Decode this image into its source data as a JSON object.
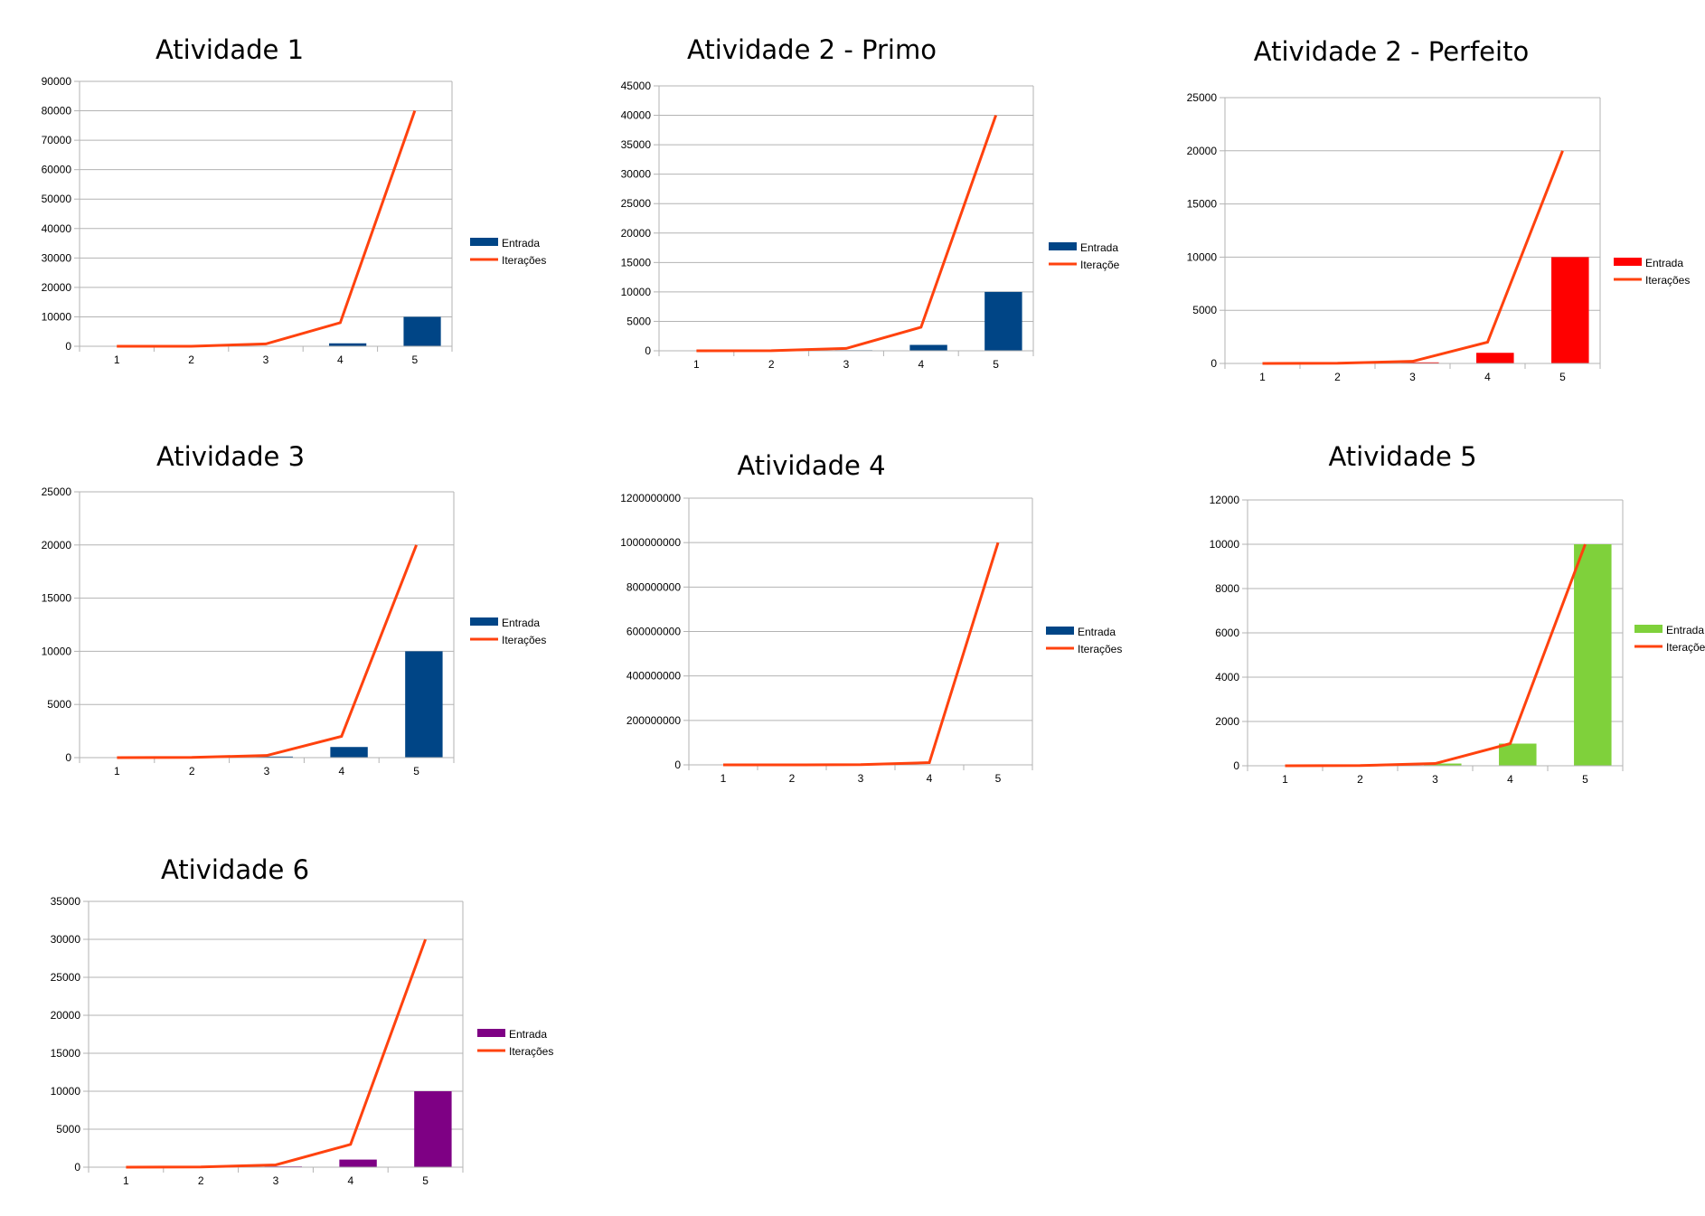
{
  "colors": {
    "line": "#ff420e",
    "grid": "#b3b3b3",
    "axis": "#b3b3b3"
  },
  "chart_data": [
    {
      "type": "bar",
      "title": "Atividade 1",
      "categories": [
        "1",
        "2",
        "3",
        "4",
        "5"
      ],
      "ylim": [
        0,
        90000
      ],
      "yticks": [
        "0",
        "10000",
        "20000",
        "30000",
        "40000",
        "50000",
        "60000",
        "70000",
        "80000",
        "90000"
      ],
      "ystep": 10000,
      "grid": true,
      "legend_placement": "right",
      "bar_color": "#004586",
      "series": [
        {
          "name": "Entrada",
          "kind": "bar",
          "values": [
            1,
            10,
            100,
            1000,
            10000
          ]
        },
        {
          "name": "Iterações",
          "kind": "line",
          "values": [
            1,
            8,
            800,
            8000,
            80000
          ]
        }
      ]
    },
    {
      "type": "bar",
      "title": "Atividade 2 - Primo",
      "categories": [
        "1",
        "2",
        "3",
        "4",
        "5"
      ],
      "ylim": [
        0,
        45000
      ],
      "yticks": [
        "0",
        "5000",
        "10000",
        "15000",
        "20000",
        "25000",
        "30000",
        "35000",
        "40000",
        "45000"
      ],
      "ystep": 5000,
      "grid": true,
      "legend_placement": "right",
      "bar_color": "#004586",
      "series": [
        {
          "name": "Entrada",
          "kind": "bar",
          "values": [
            1,
            10,
            100,
            1000,
            10000
          ]
        },
        {
          "name": "Iteraçõe",
          "kind": "line",
          "values": [
            1,
            20,
            400,
            4000,
            40000
          ]
        }
      ]
    },
    {
      "type": "bar",
      "title": "Atividade 2 - Perfeito",
      "categories": [
        "1",
        "2",
        "3",
        "4",
        "5"
      ],
      "ylim": [
        0,
        25000
      ],
      "yticks": [
        "0",
        "5000",
        "10000",
        "15000",
        "20000",
        "25000"
      ],
      "ystep": 5000,
      "grid": true,
      "legend_placement": "right",
      "bar_color": "#ff0000",
      "series": [
        {
          "name": "Entrada",
          "kind": "bar",
          "values": [
            1,
            10,
            100,
            1000,
            10000
          ]
        },
        {
          "name": "Iterações",
          "kind": "line",
          "values": [
            1,
            20,
            200,
            2000,
            20000
          ]
        }
      ]
    },
    {
      "type": "bar",
      "title": "Atividade 3",
      "categories": [
        "1",
        "2",
        "3",
        "4",
        "5"
      ],
      "ylim": [
        0,
        25000
      ],
      "yticks": [
        "0",
        "5000",
        "10000",
        "15000",
        "20000",
        "25000"
      ],
      "ystep": 5000,
      "grid": true,
      "legend_placement": "right",
      "bar_color": "#004586",
      "series": [
        {
          "name": "Entrada",
          "kind": "bar",
          "values": [
            1,
            10,
            100,
            1000,
            10000
          ]
        },
        {
          "name": "Iterações",
          "kind": "line",
          "values": [
            1,
            20,
            200,
            2000,
            20000
          ]
        }
      ]
    },
    {
      "type": "bar",
      "title": "Atividade 4",
      "categories": [
        "1",
        "2",
        "3",
        "4",
        "5"
      ],
      "ylim": [
        0,
        1200000000
      ],
      "yticks": [
        "0",
        "200000000",
        "400000000",
        "600000000",
        "800000000",
        "1000000000",
        "1200000000"
      ],
      "ystep": 200000000,
      "grid": true,
      "legend_placement": "right",
      "bar_color": "#004586",
      "series": [
        {
          "name": "Entrada",
          "kind": "bar",
          "values": [
            1,
            10,
            100,
            1000,
            10000
          ]
        },
        {
          "name": "Iterações",
          "kind": "line",
          "values": [
            1,
            1000,
            1000000,
            10000000,
            1000000000
          ]
        }
      ]
    },
    {
      "type": "bar",
      "title": "Atividade 5",
      "categories": [
        "1",
        "2",
        "3",
        "4",
        "5"
      ],
      "ylim": [
        0,
        12000
      ],
      "yticks": [
        "0",
        "2000",
        "4000",
        "6000",
        "8000",
        "10000",
        "12000"
      ],
      "ystep": 2000,
      "grid": true,
      "legend_placement": "right",
      "bar_color": "#7fd13b",
      "series": [
        {
          "name": "Entrada",
          "kind": "bar",
          "values": [
            1,
            10,
            100,
            1000,
            10000
          ]
        },
        {
          "name": "Iteraçõe",
          "kind": "line",
          "values": [
            1,
            10,
            100,
            1000,
            10000
          ]
        }
      ]
    },
    {
      "type": "bar",
      "title": "Atividade 6",
      "categories": [
        "1",
        "2",
        "3",
        "4",
        "5"
      ],
      "ylim": [
        0,
        35000
      ],
      "yticks": [
        "0",
        "5000",
        "10000",
        "15000",
        "20000",
        "25000",
        "30000",
        "35000"
      ],
      "ystep": 5000,
      "grid": true,
      "legend_placement": "right",
      "bar_color": "#7e0084",
      "series": [
        {
          "name": "Entrada",
          "kind": "bar",
          "values": [
            1,
            10,
            100,
            1000,
            10000
          ]
        },
        {
          "name": "Iterações",
          "kind": "line",
          "values": [
            1,
            30,
            300,
            3000,
            30000
          ]
        }
      ]
    }
  ]
}
